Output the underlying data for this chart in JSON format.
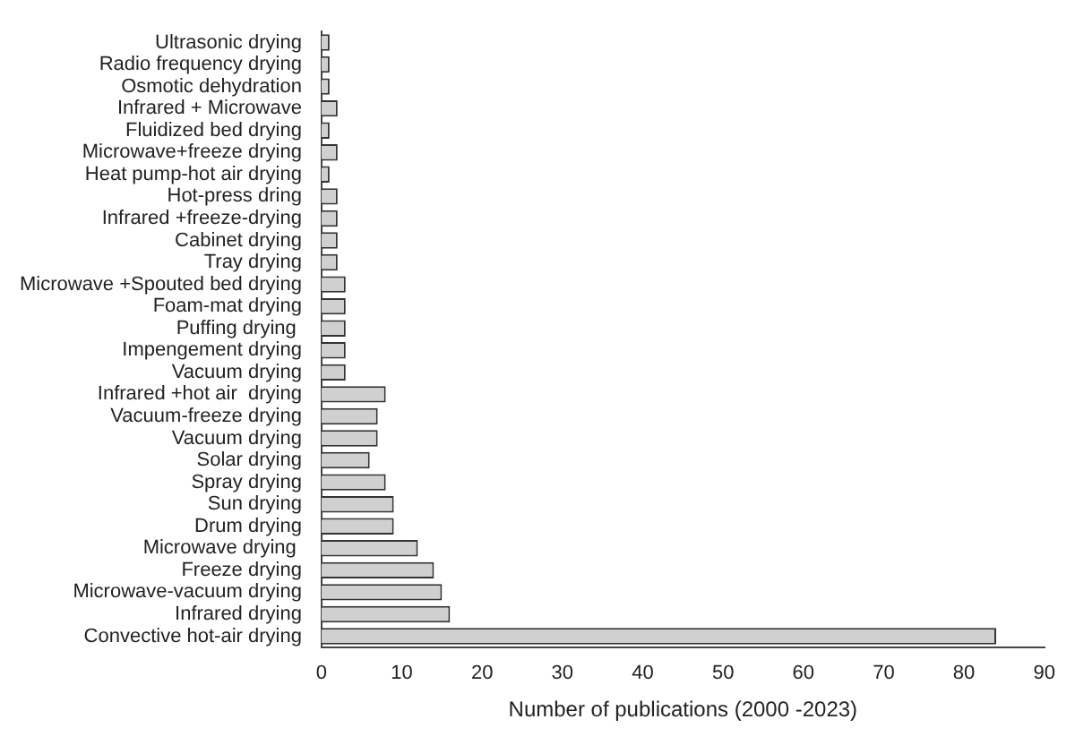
{
  "chart_data": {
    "type": "bar",
    "orientation": "horizontal",
    "xlabel": "Number of publications (2000 -2023)",
    "categories": [
      "Ultrasonic drying",
      "Radio frequency drying",
      "Osmotic dehydration",
      "Infrared + Microwave",
      "Fluidized bed drying",
      "Microwave+freeze drying",
      "Heat pump-hot air drying",
      "Hot-press dring",
      "Infrared +freeze-drying",
      "Cabinet drying",
      "Tray drying",
      "Microwave +Spouted bed drying",
      "Foam-mat drying",
      "Puffing drying ",
      "Impengement drying",
      "Vacuum drying",
      "Infrared +hot air  drying",
      "Vacuum-freeze drying",
      "Vacuum drying",
      "Solar drying",
      "Spray drying",
      "Sun drying",
      "Drum drying",
      "Microwave drying ",
      "Freeze drying",
      "Microwave-vacuum drying",
      "Infrared drying",
      "Convective hot-air drying"
    ],
    "values": [
      1,
      1,
      1,
      2,
      1,
      2,
      1,
      2,
      2,
      2,
      2,
      3,
      3,
      3,
      3,
      3,
      8,
      7,
      7,
      6,
      8,
      9,
      9,
      12,
      14,
      15,
      16,
      84
    ],
    "color": "#d0d0d0",
    "xlim": [
      0,
      90
    ],
    "xticks": [
      0,
      10,
      20,
      30,
      40,
      50,
      60,
      70,
      80,
      90
    ],
    "grid": false,
    "legend": false
  }
}
